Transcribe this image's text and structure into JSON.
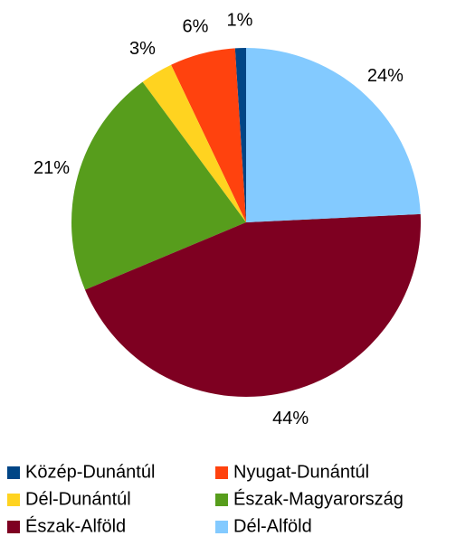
{
  "chart_data": {
    "type": "pie",
    "categories": [
      "Közép-Dunántúl",
      "Nyugat-Dunántúl",
      "Dél-Dunántúl",
      "Észak-Magyarország",
      "Észak-Alföld",
      "Dél-Alföld"
    ],
    "values": [
      1,
      6,
      3,
      21,
      44,
      24
    ],
    "value_labels": [
      "1%",
      "6%",
      "3%",
      "21%",
      "44%",
      "24%"
    ],
    "colors": [
      "#004586",
      "#ff420e",
      "#ffd320",
      "#579d1c",
      "#7e0021",
      "#83caff"
    ],
    "legend": "bottom"
  }
}
